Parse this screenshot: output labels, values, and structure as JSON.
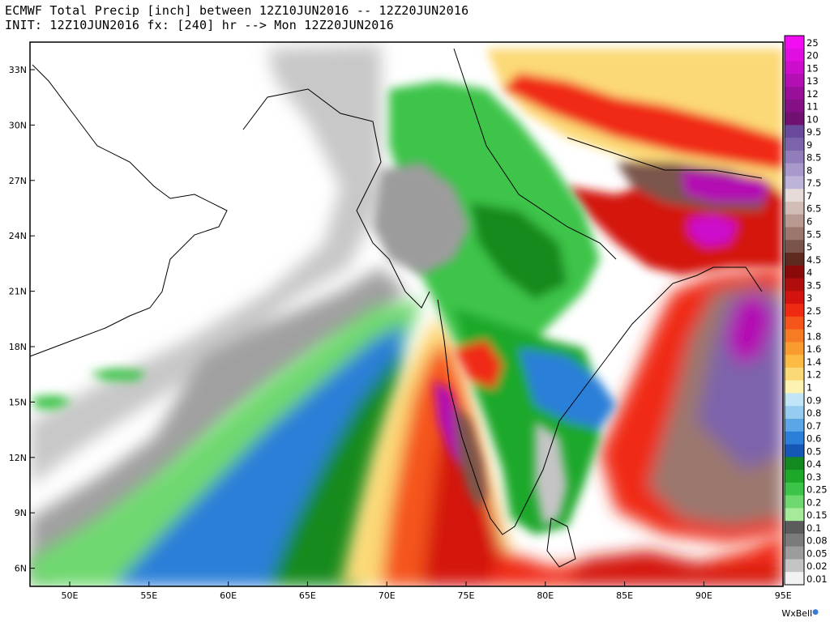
{
  "header": {
    "line1": "ECMWF Total Precip [inch] between 12Z10JUN2016 -- 12Z20JUN2016",
    "line2": "INIT: 12Z10JUN2016 fx: [240] hr --> Mon 12Z20JUN2016"
  },
  "credit": "WxBell",
  "axes": {
    "lat_labels": [
      "33N",
      "30N",
      "27N",
      "24N",
      "21N",
      "18N",
      "15N",
      "12N",
      "9N",
      "6N"
    ],
    "lon_labels": [
      "50E",
      "55E",
      "60E",
      "65E",
      "70E",
      "75E",
      "80E",
      "85E",
      "90E",
      "95E"
    ]
  },
  "legend": {
    "unit": "inch",
    "entries": [
      {
        "label": "25",
        "color": "#f20df2"
      },
      {
        "label": "20",
        "color": "#e00ee0"
      },
      {
        "label": "15",
        "color": "#cc0ecc"
      },
      {
        "label": "13",
        "color": "#b30fb3"
      },
      {
        "label": "12",
        "color": "#9a0f9a"
      },
      {
        "label": "11",
        "color": "#851085"
      },
      {
        "label": "10",
        "color": "#701070"
      },
      {
        "label": "9.5",
        "color": "#6a4a9c"
      },
      {
        "label": "9",
        "color": "#7d63ab"
      },
      {
        "label": "8.5",
        "color": "#927dbb"
      },
      {
        "label": "8",
        "color": "#a898cb"
      },
      {
        "label": "7.5",
        "color": "#beb4da"
      },
      {
        "label": "7",
        "color": "#e6dbd8"
      },
      {
        "label": "6.5",
        "color": "#d2bdb6"
      },
      {
        "label": "6",
        "color": "#b99a92"
      },
      {
        "label": "5.5",
        "color": "#9b776e"
      },
      {
        "label": "5",
        "color": "#7a544b"
      },
      {
        "label": "4.5",
        "color": "#5e2a1f"
      },
      {
        "label": "4",
        "color": "#8a0a0a"
      },
      {
        "label": "3.5",
        "color": "#b00d0d"
      },
      {
        "label": "3",
        "color": "#d4130f"
      },
      {
        "label": "2.5",
        "color": "#f02a12"
      },
      {
        "label": "2",
        "color": "#f5541b"
      },
      {
        "label": "1.8",
        "color": "#f77a25"
      },
      {
        "label": "1.6",
        "color": "#f99b2f"
      },
      {
        "label": "1.4",
        "color": "#fbbb45"
      },
      {
        "label": "1.2",
        "color": "#fcd977"
      },
      {
        "label": "1",
        "color": "#fdf2b0"
      },
      {
        "label": "0.9",
        "color": "#c2e6f7"
      },
      {
        "label": "0.8",
        "color": "#96ccf0"
      },
      {
        "label": "0.7",
        "color": "#5aa6e6"
      },
      {
        "label": "0.6",
        "color": "#2b7fd8"
      },
      {
        "label": "0.5",
        "color": "#1557b4"
      },
      {
        "label": "0.4",
        "color": "#138a1f"
      },
      {
        "label": "0.3",
        "color": "#1ea82a"
      },
      {
        "label": "0.25",
        "color": "#3cc449"
      },
      {
        "label": "0.2",
        "color": "#6fd86f"
      },
      {
        "label": "0.15",
        "color": "#a6eb9a"
      },
      {
        "label": "0.1",
        "color": "#5b5b5b"
      },
      {
        "label": "0.08",
        "color": "#7b7b7b"
      },
      {
        "label": "0.05",
        "color": "#9c9c9c"
      },
      {
        "label": "0.02",
        "color": "#c4c4c4"
      },
      {
        "label": "0.01",
        "color": "#f2f2f2"
      }
    ]
  }
}
